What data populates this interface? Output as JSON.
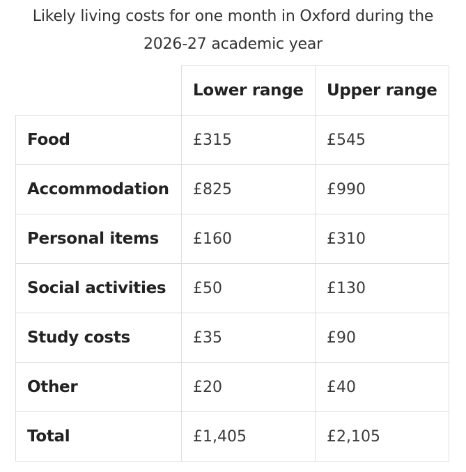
{
  "caption": {
    "line1": "Likely living costs for one month in Oxford during the",
    "line2": "2026-27 academic year"
  },
  "table": {
    "headers": [
      "",
      "Lower range",
      "Upper range"
    ],
    "rows": [
      {
        "label": "Food",
        "lower": "£315",
        "upper": "£545"
      },
      {
        "label": "Accommodation",
        "lower": "£825",
        "upper": "£990"
      },
      {
        "label": "Personal items",
        "lower": "£160",
        "upper": "£310"
      },
      {
        "label": "Social activities",
        "lower": "£50",
        "upper": "£130"
      },
      {
        "label": "Study costs",
        "lower": "£35",
        "upper": "£90"
      },
      {
        "label": "Other",
        "lower": "£20",
        "upper": "£40"
      },
      {
        "label": "Total",
        "lower": "£1,405",
        "upper": "£2,105"
      }
    ]
  }
}
